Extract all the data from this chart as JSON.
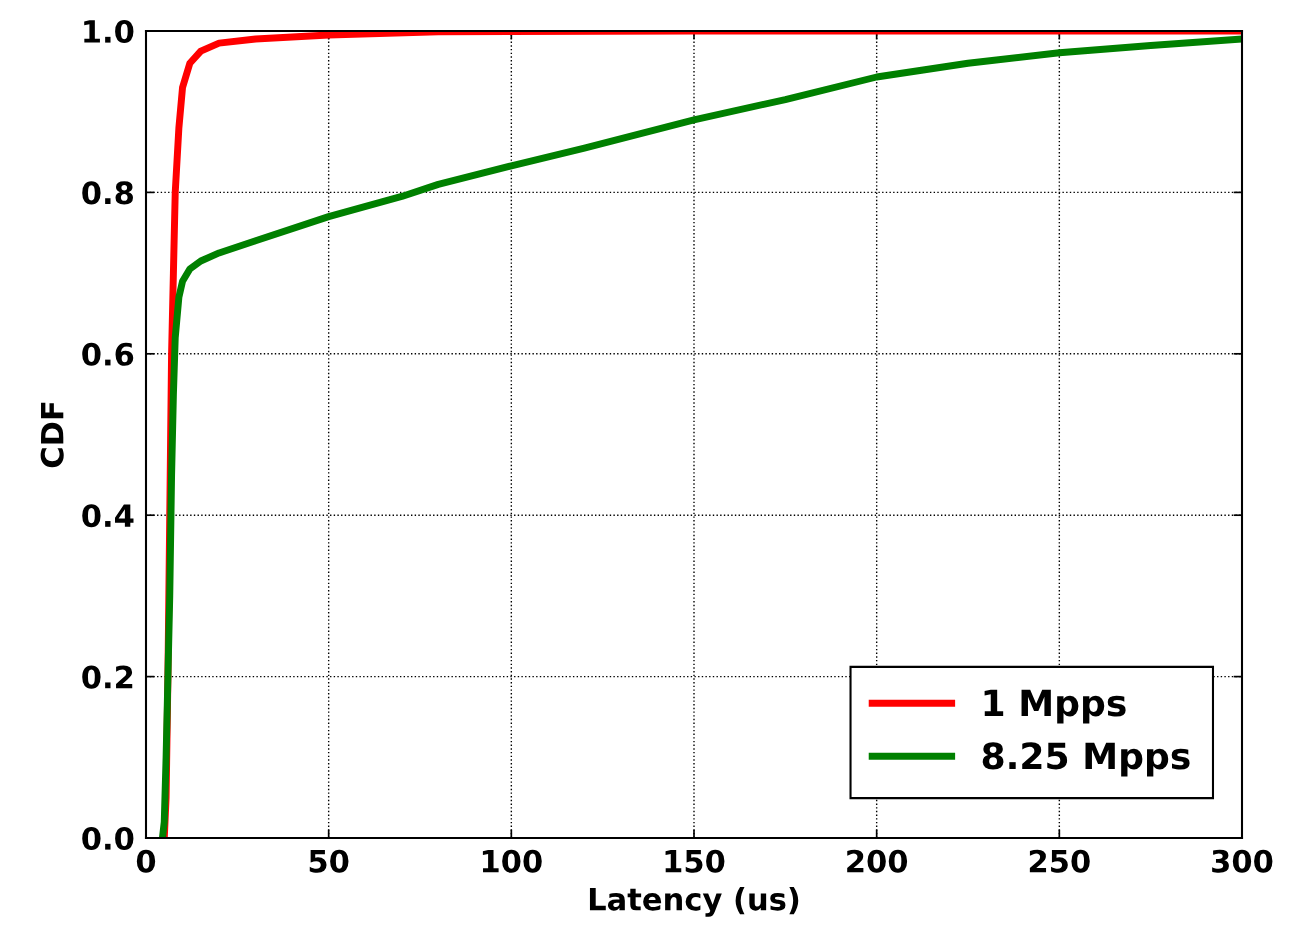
{
  "chart_data": {
    "type": "line",
    "xlabel": "Latency (us)",
    "ylabel": "CDF",
    "xlim": [
      0,
      300
    ],
    "xticks": [
      0,
      50,
      100,
      150,
      200,
      250,
      300
    ],
    "ylim": [
      0,
      1.0
    ],
    "yticks": [
      {
        "value": 0,
        "label": "0.0"
      },
      {
        "value": 0.2,
        "label": "0.2"
      },
      {
        "value": 0.4,
        "label": "0.4"
      },
      {
        "value": 0.6,
        "label": "0.6"
      },
      {
        "value": 0.8,
        "label": "0.8"
      },
      {
        "value": 1.0,
        "label": "1.0"
      }
    ],
    "grid": true,
    "legend": "bottom right",
    "marker": "none",
    "line_style": "solid",
    "series": [
      {
        "name": "1 Mpps",
        "color": "#ff0000",
        "x": [
          5,
          5.5,
          6,
          6.5,
          7,
          7.5,
          8,
          9,
          10,
          12,
          15,
          20,
          30,
          50,
          80,
          150,
          300
        ],
        "values": [
          0,
          0.05,
          0.2,
          0.4,
          0.6,
          0.7,
          0.8,
          0.88,
          0.93,
          0.96,
          0.975,
          0.985,
          0.99,
          0.995,
          0.999,
          1.0,
          1.0
        ]
      },
      {
        "name": "8.25 Mpps",
        "color": "#008000",
        "x": [
          4.5,
          5,
          5.5,
          6,
          6.5,
          7,
          7.5,
          8,
          9,
          10,
          12,
          15,
          20,
          30,
          50,
          70,
          80,
          100,
          120,
          150,
          175,
          200,
          225,
          250,
          275,
          300
        ],
        "values": [
          0,
          0.02,
          0.1,
          0.2,
          0.3,
          0.45,
          0.55,
          0.62,
          0.67,
          0.69,
          0.705,
          0.715,
          0.725,
          0.74,
          0.77,
          0.795,
          0.81,
          0.833,
          0.855,
          0.89,
          0.915,
          0.943,
          0.96,
          0.973,
          0.982,
          0.99
        ]
      }
    ]
  }
}
